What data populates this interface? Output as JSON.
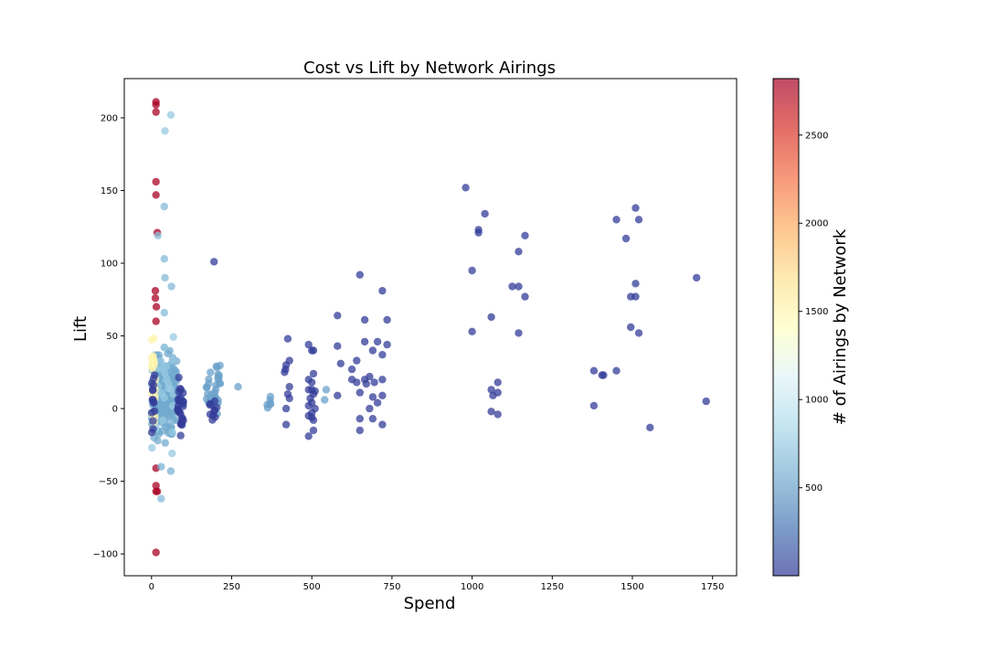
{
  "chart_data": {
    "type": "scatter",
    "title": "Cost vs Lift by Network Airings",
    "xlabel": "Spend",
    "ylabel": "Lift",
    "xlim": [
      -85,
      1825
    ],
    "ylim": [
      -115,
      227
    ],
    "xticks": [
      0,
      250,
      500,
      750,
      1000,
      1250,
      1500,
      1750
    ],
    "xtick_labels": [
      "0",
      "250",
      "500",
      "750",
      "1000",
      "1250",
      "1500",
      "1750"
    ],
    "yticks": [
      -100,
      -50,
      0,
      50,
      100,
      150,
      200
    ],
    "ytick_labels": [
      "−100",
      "−50",
      "0",
      "50",
      "100",
      "150",
      "200"
    ],
    "grid": false,
    "colorbar": {
      "label": "# of Airings by Network",
      "range": [
        1,
        2820
      ],
      "ticks": [
        500,
        1000,
        1500,
        2000,
        2500
      ],
      "tick_labels": [
        "500",
        "1000",
        "1500",
        "2000",
        "2500"
      ],
      "colormap": "RdYlBu_r",
      "colors": [
        "#313695",
        "#4575b4",
        "#74add1",
        "#abd9e9",
        "#e0f3f8",
        "#ffffbf",
        "#fee090",
        "#fdae61",
        "#f46d43",
        "#d73027",
        "#a50026"
      ]
    },
    "point_groups": [
      {
        "n": 200,
        "x": [
          0,
          80
        ],
        "y": [
          -30,
          50
        ],
        "c": 550
      },
      {
        "n": 30,
        "x": [
          0,
          70
        ],
        "y": [
          -45,
          70
        ],
        "c": 750
      },
      {
        "n": 25,
        "x": [
          0,
          12
        ],
        "y": [
          -30,
          70
        ],
        "c": 1500
      },
      {
        "n": 15,
        "x": [
          0,
          10
        ],
        "y": [
          -30,
          40
        ],
        "c": 30
      },
      {
        "n": 30,
        "x": [
          80,
          100
        ],
        "y": [
          -22,
          27
        ],
        "c": 30
      },
      {
        "n": 30,
        "x": [
          170,
          215
        ],
        "y": [
          -8,
          38
        ],
        "c": 500
      },
      {
        "n": 10,
        "x": [
          180,
          205
        ],
        "y": [
          -18,
          20
        ],
        "c": 30
      },
      {
        "n": 6,
        "x": [
          350,
          375
        ],
        "y": [
          -5,
          12
        ],
        "c": 500
      }
    ],
    "points": [
      [
        14,
        211,
        2800
      ],
      [
        14,
        209,
        2800
      ],
      [
        14,
        204,
        2800
      ],
      [
        14,
        156,
        2800
      ],
      [
        14,
        147,
        2800
      ],
      [
        18,
        121,
        2800
      ],
      [
        12,
        81,
        2800
      ],
      [
        12,
        76,
        2800
      ],
      [
        15,
        70,
        2800
      ],
      [
        14,
        60,
        2800
      ],
      [
        14,
        -41,
        2800
      ],
      [
        14,
        -53,
        2800
      ],
      [
        14,
        -57,
        2800
      ],
      [
        18,
        -57,
        2800
      ],
      [
        14,
        -99,
        2800
      ],
      [
        60,
        202,
        750
      ],
      [
        42,
        191,
        750
      ],
      [
        40,
        139,
        650
      ],
      [
        20,
        119,
        700
      ],
      [
        40,
        103,
        650
      ],
      [
        42,
        90,
        650
      ],
      [
        62,
        84,
        650
      ],
      [
        40,
        66,
        650
      ],
      [
        30,
        -62,
        650
      ],
      [
        60,
        -43,
        600
      ],
      [
        30,
        -40,
        600
      ],
      [
        195,
        101,
        30
      ],
      [
        270,
        15,
        500
      ],
      [
        425,
        48,
        30
      ],
      [
        418,
        27,
        30
      ],
      [
        420,
        30,
        30
      ],
      [
        430,
        33,
        30
      ],
      [
        415,
        25,
        30
      ],
      [
        425,
        10,
        30
      ],
      [
        430,
        7,
        30
      ],
      [
        420,
        0,
        30
      ],
      [
        420,
        -11,
        30
      ],
      [
        430,
        15,
        30
      ],
      [
        490,
        44,
        30
      ],
      [
        500,
        40,
        30
      ],
      [
        505,
        40,
        30
      ],
      [
        490,
        20,
        30
      ],
      [
        500,
        18,
        30
      ],
      [
        505,
        24,
        30
      ],
      [
        490,
        13,
        30
      ],
      [
        500,
        13,
        30
      ],
      [
        505,
        10,
        30
      ],
      [
        510,
        12,
        30
      ],
      [
        495,
        7,
        30
      ],
      [
        500,
        4,
        30
      ],
      [
        490,
        2,
        30
      ],
      [
        510,
        0,
        30
      ],
      [
        500,
        -3,
        30
      ],
      [
        490,
        -5,
        30
      ],
      [
        505,
        -8,
        30
      ],
      [
        505,
        -15,
        30
      ],
      [
        490,
        -19,
        30
      ],
      [
        500,
        -6,
        30
      ],
      [
        545,
        13,
        500
      ],
      [
        540,
        6,
        500
      ],
      [
        580,
        64,
        30
      ],
      [
        580,
        43,
        30
      ],
      [
        590,
        31,
        30
      ],
      [
        580,
        9,
        30
      ],
      [
        625,
        27,
        30
      ],
      [
        625,
        20,
        30
      ],
      [
        640,
        18,
        30
      ],
      [
        640,
        33,
        30
      ],
      [
        650,
        11,
        30
      ],
      [
        650,
        -7,
        30
      ],
      [
        650,
        -15,
        30
      ],
      [
        650,
        92,
        30
      ],
      [
        665,
        61,
        30
      ],
      [
        665,
        46,
        30
      ],
      [
        665,
        20,
        30
      ],
      [
        670,
        17,
        30
      ],
      [
        680,
        22,
        30
      ],
      [
        680,
        0,
        30
      ],
      [
        690,
        40,
        30
      ],
      [
        695,
        18,
        30
      ],
      [
        690,
        8,
        30
      ],
      [
        690,
        -7,
        30
      ],
      [
        705,
        46,
        30
      ],
      [
        705,
        4,
        30
      ],
      [
        720,
        81,
        30
      ],
      [
        720,
        37,
        30
      ],
      [
        720,
        20,
        30
      ],
      [
        720,
        9,
        30
      ],
      [
        720,
        -11,
        30
      ],
      [
        735,
        61,
        30
      ],
      [
        735,
        44,
        30
      ],
      [
        980,
        152,
        30
      ],
      [
        1000,
        95,
        30
      ],
      [
        1000,
        53,
        30
      ],
      [
        1020,
        123,
        30
      ],
      [
        1020,
        121,
        30
      ],
      [
        1040,
        134,
        30
      ],
      [
        1060,
        63,
        30
      ],
      [
        1060,
        13,
        30
      ],
      [
        1065,
        9,
        30
      ],
      [
        1060,
        -2,
        30
      ],
      [
        1080,
        18,
        30
      ],
      [
        1080,
        11,
        30
      ],
      [
        1080,
        -4,
        30
      ],
      [
        1125,
        84,
        30
      ],
      [
        1145,
        84,
        30
      ],
      [
        1145,
        108,
        30
      ],
      [
        1145,
        52,
        30
      ],
      [
        1165,
        119,
        30
      ],
      [
        1165,
        77,
        30
      ],
      [
        1380,
        26,
        30
      ],
      [
        1380,
        2,
        30
      ],
      [
        1405,
        23,
        30
      ],
      [
        1410,
        23,
        30
      ],
      [
        1450,
        130,
        30
      ],
      [
        1450,
        26,
        30
      ],
      [
        1480,
        117,
        30
      ],
      [
        1495,
        77,
        30
      ],
      [
        1495,
        56,
        30
      ],
      [
        1510,
        138,
        30
      ],
      [
        1510,
        86,
        30
      ],
      [
        1510,
        77,
        30
      ],
      [
        1520,
        130,
        30
      ],
      [
        1520,
        52,
        30
      ],
      [
        1555,
        -13,
        30
      ],
      [
        1700,
        90,
        30
      ],
      [
        1730,
        5,
        30
      ]
    ]
  }
}
